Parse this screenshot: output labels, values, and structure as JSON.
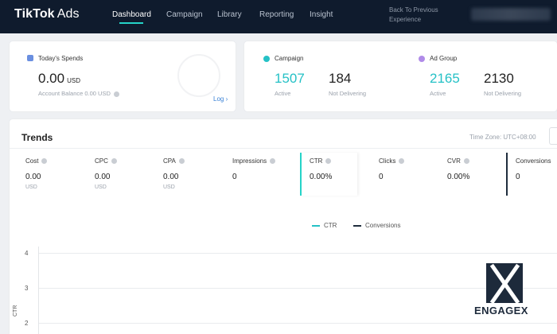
{
  "header": {
    "logo_brand": "TikTok",
    "logo_product": "Ads",
    "nav": [
      "Dashboard",
      "Campaign",
      "Library",
      "Reporting",
      "Insight"
    ],
    "active_nav": "Dashboard",
    "back_link": "Back To Previous Experience"
  },
  "spend": {
    "title": "Today's Spends",
    "amount": "0.00",
    "currency": "USD",
    "balance_label": "Account Balance 0.00 USD",
    "log_link": "Log ›"
  },
  "campaign": {
    "title": "Campaign",
    "active_value": "1507",
    "active_label": "Active",
    "not_delivering_value": "184",
    "not_delivering_label": "Not Delivering"
  },
  "ad_group": {
    "title": "Ad Group",
    "active_value": "2165",
    "active_label": "Active",
    "not_delivering_value": "2130",
    "not_delivering_label": "Not Delivering"
  },
  "trends": {
    "title": "Trends",
    "timezone": "Time Zone: UTC+08:00",
    "metrics": [
      {
        "label": "Cost",
        "value": "0.00",
        "unit": "USD"
      },
      {
        "label": "CPC",
        "value": "0.00",
        "unit": "USD"
      },
      {
        "label": "CPA",
        "value": "0.00",
        "unit": "USD"
      },
      {
        "label": "Impressions",
        "value": "0",
        "unit": ""
      },
      {
        "label": "CTR",
        "value": "0.00%",
        "unit": ""
      },
      {
        "label": "Clicks",
        "value": "0",
        "unit": ""
      },
      {
        "label": "CVR",
        "value": "0.00%",
        "unit": ""
      },
      {
        "label": "Conversions",
        "value": "0",
        "unit": ""
      }
    ],
    "legend": [
      "CTR",
      "Conversions"
    ],
    "y_ticks": [
      "4",
      "3",
      "2"
    ],
    "y_axis_title": "CTR"
  },
  "colors": {
    "nav_bg": "#0f1b2d",
    "accent_teal": "#25c1c6",
    "dark_series": "#1f2d3d"
  },
  "watermark": {
    "text": "ENGAGEX"
  }
}
